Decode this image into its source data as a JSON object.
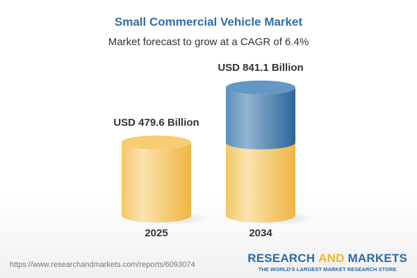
{
  "chart_data": {
    "type": "bar",
    "style": "3d-cylinder",
    "title": "Small Commercial Vehicle Market",
    "subtitle": "Market forecast to grow at a CAGR of 6.4%",
    "categories": [
      "2025",
      "2034"
    ],
    "values": [
      479.6,
      841.1
    ],
    "data_labels": [
      "USD 479.6 Billion",
      "USD 841.1 Billion"
    ],
    "unit": "USD Billion",
    "colors": {
      "base": "#f5c865",
      "growth": "#4f87b8",
      "title": "#2f6ea5"
    }
  },
  "footer": {
    "url": "https://www.researchandmarkets.com/reports/6093074",
    "logo_part1": "RESEARCH ",
    "logo_part2": "AND",
    "logo_part3": " MARKETS",
    "tagline": "THE WORLD'S LARGEST MARKET RESEARCH STORE"
  }
}
